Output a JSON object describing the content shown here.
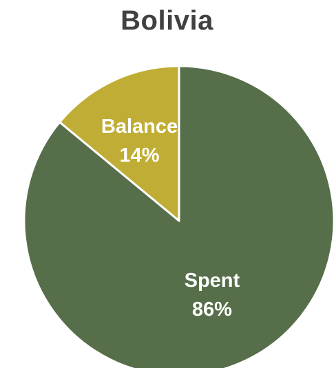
{
  "chart_data": {
    "type": "pie",
    "title": "Bolivia",
    "slices": [
      {
        "label": "Spent",
        "percent_label": "86%",
        "value": 86,
        "color": "#566e4a"
      },
      {
        "label": "Balance",
        "percent_label": "14%",
        "value": 14,
        "color": "#c0ad35"
      }
    ],
    "start_angle": "12 o'clock",
    "direction": "clockwise",
    "border_color": "#ffffff"
  }
}
